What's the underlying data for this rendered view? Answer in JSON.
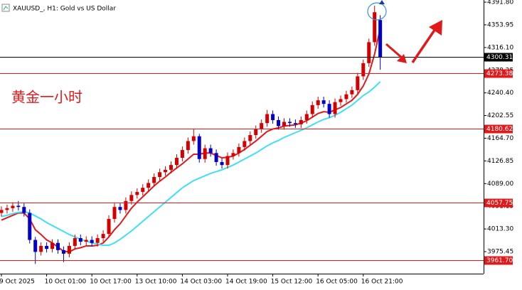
{
  "chart_data": {
    "type": "candlestick",
    "title": "XAUUSD_, H1:  Gold vs US Dollar",
    "annotation": "黄金一小时",
    "up_color": "#d40000",
    "down_color": "#0000c8",
    "ylim": [
      3938.7,
      4395.4
    ],
    "yticks": [
      {
        "value": 4391.8,
        "label": "4391.80"
      },
      {
        "value": 4353.95,
        "label": "4353.95"
      },
      {
        "value": 4316.1,
        "label": "4316.10"
      },
      {
        "value": 4278.25,
        "label": "4278.25"
      },
      {
        "value": 4240.4,
        "label": "4240.40"
      },
      {
        "value": 4202.55,
        "label": "4202.55"
      },
      {
        "value": 4164.7,
        "label": "4164.70"
      },
      {
        "value": 4126.85,
        "label": "4126.85"
      },
      {
        "value": 4089,
        "label": "4089.00"
      },
      {
        "value": 4051.15,
        "label": "4051.15"
      },
      {
        "value": 4013.3,
        "label": "4013.30"
      },
      {
        "value": 3975.45,
        "label": "3975.45"
      }
    ],
    "levels": [
      {
        "value": 4300.31,
        "label": "4300.31",
        "color": "#000000"
      },
      {
        "value": 4273.38,
        "label": "4273.38",
        "color": "#e0191b"
      },
      {
        "value": 4180.62,
        "label": "4180.62",
        "color": "#e0191b"
      },
      {
        "value": 4057.75,
        "label": "4057.75",
        "color": "#e0191b"
      },
      {
        "value": 3961.7,
        "label": "3961.70",
        "color": "#e0191b"
      }
    ],
    "categories": [
      "9 Oct 2025",
      null,
      null,
      null,
      null,
      null,
      null,
      null,
      "10 Oct 01:00",
      null,
      null,
      null,
      null,
      null,
      null,
      null,
      "10 Oct 17:00",
      null,
      null,
      null,
      null,
      null,
      null,
      null,
      "13 Oct 10:00",
      null,
      null,
      null,
      null,
      null,
      null,
      null,
      "14 Oct 03:00",
      null,
      null,
      null,
      null,
      null,
      null,
      null,
      "14 Oct 19:00",
      null,
      null,
      null,
      null,
      null,
      null,
      null,
      "15 Oct 12:00",
      null,
      null,
      null,
      null,
      null,
      null,
      null,
      "16 Oct 05:00",
      null,
      null,
      null,
      null,
      null,
      null,
      null,
      "16 Oct 21:00",
      null,
      null,
      null
    ],
    "open": [
      4040,
      4045,
      4048,
      4052,
      4050,
      4040,
      3995,
      3975,
      3985,
      3980,
      3990,
      3978,
      3972,
      3985,
      3998,
      3992,
      3995,
      3990,
      3998,
      4005,
      4030,
      4050,
      4045,
      4060,
      4070,
      4075,
      4082,
      4090,
      4100,
      4108,
      4112,
      4120,
      4132,
      4145,
      4160,
      4168,
      4130,
      4148,
      4140,
      4125,
      4120,
      4135,
      4140,
      4150,
      4160,
      4170,
      4180,
      4190,
      4205,
      4195,
      4185,
      4192,
      4190,
      4188,
      4195,
      4205,
      4220,
      4228,
      4222,
      4205,
      4225,
      4230,
      4238,
      4245,
      4268,
      4290,
      4325,
      4362
    ],
    "high": [
      4051,
      4054,
      4058,
      4060,
      4056,
      4046,
      4000,
      3991,
      3991,
      3996,
      3996,
      3984,
      3991,
      4004,
      4004,
      4001,
      4001,
      4004,
      4011,
      4036,
      4056,
      4056,
      4066,
      4076,
      4081,
      4088,
      4096,
      4106,
      4114,
      4118,
      4126,
      4138,
      4151,
      4166,
      4180,
      4172,
      4154,
      4154,
      4146,
      4131,
      4141,
      4146,
      4156,
      4166,
      4176,
      4186,
      4196,
      4212,
      4211,
      4201,
      4198,
      4198,
      4196,
      4201,
      4211,
      4226,
      4234,
      4234,
      4228,
      4231,
      4236,
      4244,
      4251,
      4274,
      4296,
      4331,
      4386,
      4370
    ],
    "low": [
      4034,
      4039,
      4042,
      4044,
      4034,
      3989,
      3955,
      3969,
      3974,
      3974,
      3972,
      3958,
      3966,
      3979,
      3986,
      3986,
      3984,
      3984,
      3992,
      3999,
      4024,
      4039,
      4039,
      4054,
      4064,
      4069,
      4076,
      4084,
      4094,
      4102,
      4106,
      4114,
      4126,
      4139,
      4154,
      4124,
      4124,
      4134,
      4119,
      4114,
      4114,
      4129,
      4134,
      4144,
      4154,
      4164,
      4174,
      4184,
      4189,
      4179,
      4179,
      4184,
      4182,
      4182,
      4189,
      4199,
      4214,
      4216,
      4199,
      4199,
      4219,
      4224,
      4232,
      4239,
      4262,
      4284,
      4319,
      4279
    ],
    "close": [
      4045,
      4048,
      4052,
      4050,
      4040,
      3995,
      3975,
      3985,
      3980,
      3990,
      3978,
      3972,
      3985,
      3998,
      3992,
      3995,
      3990,
      3998,
      4005,
      4030,
      4050,
      4045,
      4060,
      4070,
      4075,
      4082,
      4090,
      4100,
      4108,
      4112,
      4120,
      4132,
      4145,
      4160,
      4168,
      4130,
      4148,
      4140,
      4125,
      4120,
      4135,
      4140,
      4150,
      4160,
      4170,
      4180,
      4190,
      4205,
      4195,
      4185,
      4192,
      4190,
      4188,
      4195,
      4205,
      4220,
      4228,
      4222,
      4205,
      4225,
      4230,
      4238,
      4245,
      4268,
      4290,
      4325,
      4375,
      4300.31
    ],
    "series": [
      {
        "color": "#e0191b",
        "values": [
          4028,
          4032,
          4036,
          4040,
          4040,
          4030,
          4012,
          4004,
          3995,
          3990,
          3983,
          3976,
          3975,
          3980,
          3982,
          3985,
          3985,
          3986,
          3990,
          4000,
          4012,
          4022,
          4035,
          4048,
          4058,
          4067,
          4076,
          4085,
          4093,
          4100,
          4108,
          4115,
          4122,
          4130,
          4138,
          4138,
          4140,
          4140,
          4136,
          4132,
          4133,
          4135,
          4140,
          4146,
          4153,
          4160,
          4168,
          4176,
          4180,
          4182,
          4185,
          4186,
          4187,
          4190,
          4194,
          4200,
          4206,
          4209,
          4208,
          4212,
          4216,
          4222,
          4228,
          4238,
          4252,
          4272,
          4305,
          4348
        ]
      },
      {
        "color": "#40e0f0",
        "values": [
          4034,
          4036,
          4039,
          4041,
          4042,
          4040,
          4035,
          4030,
          4024,
          4019,
          4014,
          4009,
          4004,
          4000,
          3996,
          3993,
          3990,
          3988,
          3986,
          3986,
          3990,
          3996,
          4003,
          4010,
          4018,
          4026,
          4034,
          4042,
          4050,
          4058,
          4066,
          4074,
          4082,
          4088,
          4094,
          4098,
          4102,
          4106,
          4109,
          4112,
          4116,
          4120,
          4125,
          4130,
          4135,
          4140,
          4146,
          4152,
          4157,
          4161,
          4166,
          4170,
          4174,
          4178,
          4182,
          4187,
          4192,
          4196,
          4199,
          4203,
          4208,
          4214,
          4220,
          4228,
          4236,
          4242,
          4250,
          4259
        ]
      }
    ]
  }
}
